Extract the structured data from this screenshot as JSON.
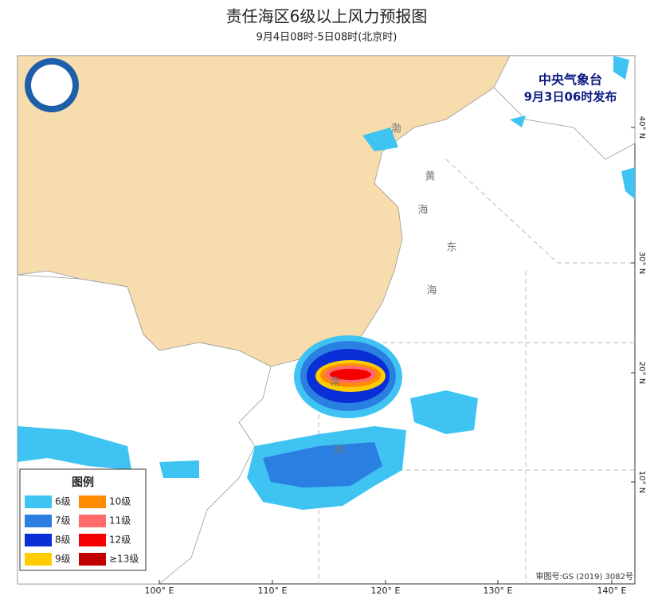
{
  "header": {
    "title": "责任海区6级以上风力预报图",
    "subtitle": "9月4日08时-5日08时(北京时)"
  },
  "issuer": {
    "name": "中央气象台",
    "time": "9月3日06时发布"
  },
  "legend": {
    "title": "图例",
    "items": [
      {
        "label": "6级",
        "color": "#3ec3f2"
      },
      {
        "label": "10级",
        "color": "#ff8c00"
      },
      {
        "label": "7级",
        "color": "#2a7fe0"
      },
      {
        "label": "11级",
        "color": "#ff6b6b"
      },
      {
        "label": "8级",
        "color": "#0a2fd6"
      },
      {
        "label": "12级",
        "color": "#f40000"
      },
      {
        "label": "9级",
        "color": "#ffcc00"
      },
      {
        "label": "≥13级",
        "color": "#c00000"
      }
    ]
  },
  "map": {
    "lon_labels": [
      "100° E",
      "110° E",
      "120° E",
      "130° E",
      "140° E"
    ],
    "lat_labels": [
      "10° N",
      "20° N",
      "30° N",
      "40° N"
    ],
    "sea_labels": [
      "渤",
      "黄",
      "海",
      "东",
      "海",
      "南",
      "海"
    ],
    "approval": "审图号:GS (2019) 3082号"
  }
}
